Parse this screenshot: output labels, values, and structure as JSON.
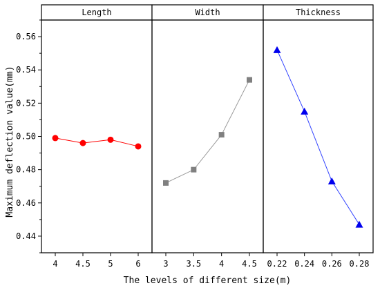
{
  "chart_data": {
    "type": "line",
    "ylabel": "Maximum deflection value(mm)",
    "xlabel": "The levels of different size(m)",
    "ylim": [
      0.43,
      0.57
    ],
    "yticks": [
      0.44,
      0.46,
      0.48,
      0.5,
      0.52,
      0.54,
      0.56
    ],
    "ytick_labels": [
      "0.44",
      "0.46",
      "0.48",
      "0.50",
      "0.52",
      "0.54",
      "0.56"
    ],
    "grid": false,
    "panels": [
      {
        "title": "Length",
        "marker": "circle",
        "color": "#ff0000",
        "line_color": "#ff0000",
        "categories": [
          "4",
          "4.5",
          "5",
          "6"
        ],
        "values": [
          0.499,
          0.496,
          0.498,
          0.494
        ]
      },
      {
        "title": "Width",
        "marker": "square",
        "color": "#808080",
        "line_color": "#9a9a9a",
        "categories": [
          "3",
          "3.5",
          "4",
          "4.5"
        ],
        "values": [
          0.472,
          0.48,
          0.501,
          0.534
        ]
      },
      {
        "title": "Thickness",
        "marker": "triangle",
        "color": "#0000ee",
        "line_color": "#3344ff",
        "categories": [
          "0.22",
          "0.24",
          "0.26",
          "0.28"
        ],
        "values": [
          0.552,
          0.515,
          0.473,
          0.447
        ]
      }
    ]
  }
}
